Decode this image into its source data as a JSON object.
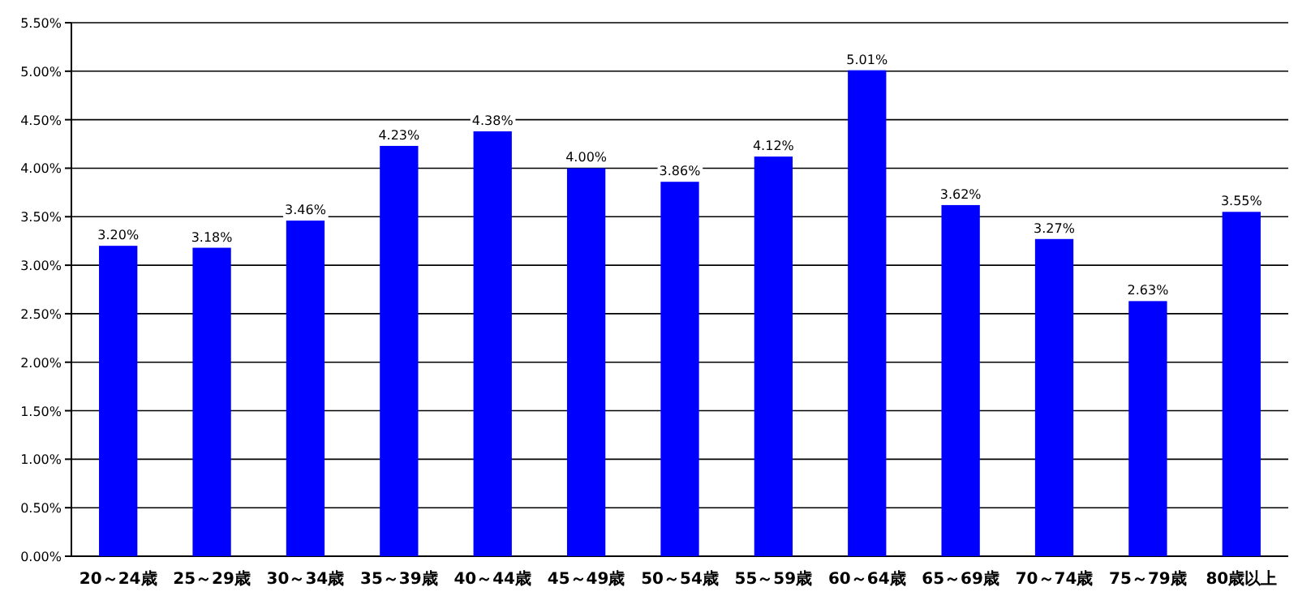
{
  "chart_data": {
    "type": "bar",
    "categories": [
      "20～24歳",
      "25～29歳",
      "30～34歳",
      "35～39歳",
      "40～44歳",
      "45～49歳",
      "50～54歳",
      "55～59歳",
      "60～64歳",
      "65～69歳",
      "70～74歳",
      "75～79歳",
      "80歳以上"
    ],
    "series": [
      {
        "color": "#0000ff",
        "values": [
          3.2,
          3.18,
          3.46,
          4.23,
          4.38,
          4.0,
          3.86,
          4.12,
          5.01,
          3.62,
          3.27,
          2.63,
          3.55
        ],
        "value_labels": [
          "3.20%",
          "3.18%",
          "3.46%",
          "4.23%",
          "4.38%",
          "4.00%",
          "3.86%",
          "4.12%",
          "5.01%",
          "3.62%",
          "3.27%",
          "2.63%",
          "3.55%"
        ]
      }
    ],
    "ylim": [
      0,
      5.5
    ],
    "yticks": [
      {
        "value": 0,
        "label": "0.00%"
      },
      {
        "value": 0.5,
        "label": "0.50%"
      },
      {
        "value": 1,
        "label": "1.00%"
      },
      {
        "value": 1.5,
        "label": "1.50%"
      },
      {
        "value": 2,
        "label": "2.00%"
      },
      {
        "value": 2.5,
        "label": "2.50%"
      },
      {
        "value": 3,
        "label": "3.00%"
      },
      {
        "value": 3.5,
        "label": "3.50%"
      },
      {
        "value": 4,
        "label": "4.00%"
      },
      {
        "value": 4.5,
        "label": "4.50%"
      },
      {
        "value": 5,
        "label": "5.00%"
      },
      {
        "value": 5.5,
        "label": "5.50%"
      }
    ],
    "grid": "y"
  }
}
